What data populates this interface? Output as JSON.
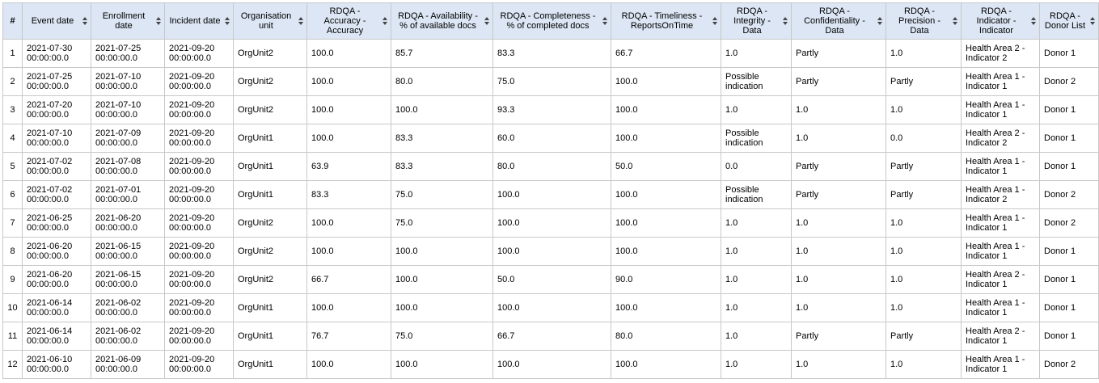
{
  "table": {
    "headers": [
      "#",
      "Event date",
      "Enrollment date",
      "Incident date",
      "Organisation unit",
      "RDQA - Accuracy - Accuracy",
      "RDQA - Availability - % of available docs",
      "RDQA - Completeness - % of completed docs",
      "RDQA - Timeliness - ReportsOnTime",
      "RDQA - Integrity - Data",
      "RDQA - Confidentiality - Data",
      "RDQA - Precision - Data",
      "RDQA - Indicator - Indicator",
      "RDQA - Donor List"
    ],
    "rows": [
      [
        "1",
        "2021-07-30 00:00:00.0",
        "2021-07-25 00:00:00.0",
        "2021-09-20 00:00:00.0",
        "OrgUnit2",
        "100.0",
        "85.7",
        "83.3",
        "66.7",
        "1.0",
        "Partly",
        "1.0",
        "Health Area 2 - Indicator 2",
        "Donor 1"
      ],
      [
        "2",
        "2021-07-25 00:00:00.0",
        "2021-07-10 00:00:00.0",
        "2021-09-20 00:00:00.0",
        "OrgUnit2",
        "100.0",
        "80.0",
        "75.0",
        "100.0",
        "Possible indication",
        "Partly",
        "Partly",
        "Health Area 1 - Indicator 1",
        "Donor 2"
      ],
      [
        "3",
        "2021-07-20 00:00:00.0",
        "2021-07-10 00:00:00.0",
        "2021-09-20 00:00:00.0",
        "OrgUnit2",
        "100.0",
        "100.0",
        "93.3",
        "100.0",
        "1.0",
        "1.0",
        "1.0",
        "Health Area 1 - Indicator 1",
        "Donor 1"
      ],
      [
        "4",
        "2021-07-10 00:00:00.0",
        "2021-07-09 00:00:00.0",
        "2021-09-20 00:00:00.0",
        "OrgUnit1",
        "100.0",
        "83.3",
        "60.0",
        "100.0",
        "Possible indication",
        "1.0",
        "0.0",
        "Health Area 2 - Indicator 2",
        "Donor 1"
      ],
      [
        "5",
        "2021-07-02 00:00:00.0",
        "2021-07-08 00:00:00.0",
        "2021-09-20 00:00:00.0",
        "OrgUnit1",
        "63.9",
        "83.3",
        "80.0",
        "50.0",
        "0.0",
        "Partly",
        "Partly",
        "Health Area 1 - Indicator 1",
        "Donor 1"
      ],
      [
        "6",
        "2021-07-02 00:00:00.0",
        "2021-07-01 00:00:00.0",
        "2021-09-20 00:00:00.0",
        "OrgUnit1",
        "83.3",
        "75.0",
        "100.0",
        "100.0",
        "Possible indication",
        "Partly",
        "Partly",
        "Health Area 1 - Indicator 2",
        "Donor 2"
      ],
      [
        "7",
        "2021-06-25 00:00:00.0",
        "2021-06-20 00:00:00.0",
        "2021-09-20 00:00:00.0",
        "OrgUnit2",
        "100.0",
        "75.0",
        "100.0",
        "100.0",
        "1.0",
        "1.0",
        "1.0",
        "Health Area 1 - Indicator 1",
        "Donor 2"
      ],
      [
        "8",
        "2021-06-20 00:00:00.0",
        "2021-06-15 00:00:00.0",
        "2021-09-20 00:00:00.0",
        "OrgUnit2",
        "100.0",
        "100.0",
        "100.0",
        "100.0",
        "1.0",
        "1.0",
        "1.0",
        "Health Area 1 - Indicator 1",
        "Donor 1"
      ],
      [
        "9",
        "2021-06-20 00:00:00.0",
        "2021-06-15 00:00:00.0",
        "2021-09-20 00:00:00.0",
        "OrgUnit2",
        "66.7",
        "100.0",
        "50.0",
        "90.0",
        "1.0",
        "1.0",
        "1.0",
        "Health Area 2 - Indicator 1",
        "Donor 1"
      ],
      [
        "10",
        "2021-06-14 00:00:00.0",
        "2021-06-02 00:00:00.0",
        "2021-09-20 00:00:00.0",
        "OrgUnit1",
        "100.0",
        "100.0",
        "100.0",
        "100.0",
        "1.0",
        "1.0",
        "1.0",
        "Health Area 1 - Indicator 1",
        "Donor 1"
      ],
      [
        "11",
        "2021-06-14 00:00:00.0",
        "2021-06-02 00:00:00.0",
        "2021-09-20 00:00:00.0",
        "OrgUnit1",
        "76.7",
        "75.0",
        "66.7",
        "80.0",
        "1.0",
        "Partly",
        "Partly",
        "Health Area 2 - Indicator 1",
        "Donor 1"
      ],
      [
        "12",
        "2021-06-10 00:00:00.0",
        "2021-06-09 00:00:00.0",
        "2021-09-20 00:00:00.0",
        "OrgUnit1",
        "100.0",
        "100.0",
        "100.0",
        "100.0",
        "1.0",
        "1.0",
        "1.0",
        "Health Area 1 - Indicator 1",
        "Donor 2"
      ]
    ]
  }
}
